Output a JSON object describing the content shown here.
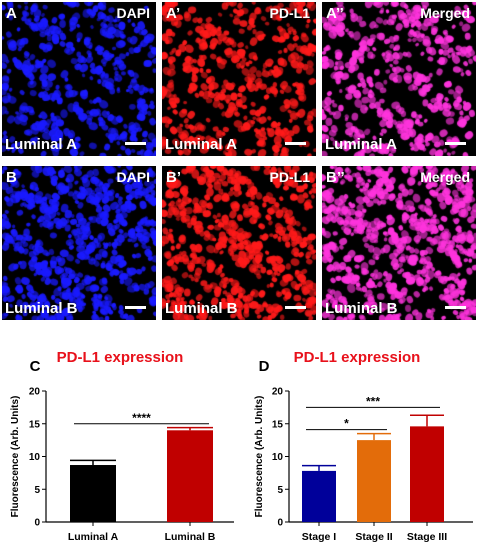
{
  "colors": {
    "dapi": "#1a1aff",
    "pdl1": "#ff1a1a",
    "merged": "#ff33dd",
    "title_red": "#e8111b",
    "luminal_a": "#000000",
    "luminal_b": "#c00000",
    "stage_i": "#00009a",
    "stage_ii": "#e36c0a",
    "stage_iii": "#c00000"
  },
  "micrographs": [
    {
      "panel": "A",
      "channel": "DAPI",
      "subtype": "Luminal A",
      "stain": "dapi"
    },
    {
      "panel": "A’",
      "channel": "PD-L1",
      "subtype": "Luminal A",
      "stain": "pdl1"
    },
    {
      "panel": "A’’",
      "channel": "Merged",
      "subtype": "Luminal A",
      "stain": "merged"
    },
    {
      "panel": "B",
      "channel": "DAPI",
      "subtype": "Luminal B",
      "stain": "dapi"
    },
    {
      "panel": "B’",
      "channel": "PD-L1",
      "subtype": "Luminal B",
      "stain": "pdl1"
    },
    {
      "panel": "B’’",
      "channel": "Merged",
      "subtype": "Luminal B",
      "stain": "merged"
    }
  ],
  "chart_data": [
    {
      "panel": "C",
      "type": "bar",
      "title": "PD-L1 expression",
      "ylabel": "Fluorescence (Arb. Units)",
      "xlabel": "",
      "ylim": [
        0,
        20
      ],
      "yticks": [
        0,
        5,
        10,
        15,
        20
      ],
      "categories": [
        "Luminal A",
        "Luminal B"
      ],
      "values": [
        8.7,
        14.0
      ],
      "errors": [
        0.7,
        0.4
      ],
      "bar_colors": [
        "#000000",
        "#c00000"
      ],
      "significance": [
        {
          "from": 0,
          "to": 1,
          "label": "****"
        }
      ]
    },
    {
      "panel": "D",
      "type": "bar",
      "title": "PD-L1 expression",
      "ylabel": "Fluorescence (Arb. Units)",
      "xlabel": "",
      "ylim": [
        0,
        20
      ],
      "yticks": [
        0,
        5,
        10,
        15,
        20
      ],
      "categories": [
        "Stage I",
        "Stage II",
        "Stage III"
      ],
      "values": [
        7.8,
        12.5,
        14.6
      ],
      "errors": [
        0.8,
        1.0,
        1.7
      ],
      "bar_colors": [
        "#00009a",
        "#e36c0a",
        "#c00000"
      ],
      "significance": [
        {
          "from": 0,
          "to": 1,
          "label": "*"
        },
        {
          "from": 0,
          "to": 2,
          "label": "***"
        }
      ]
    }
  ]
}
